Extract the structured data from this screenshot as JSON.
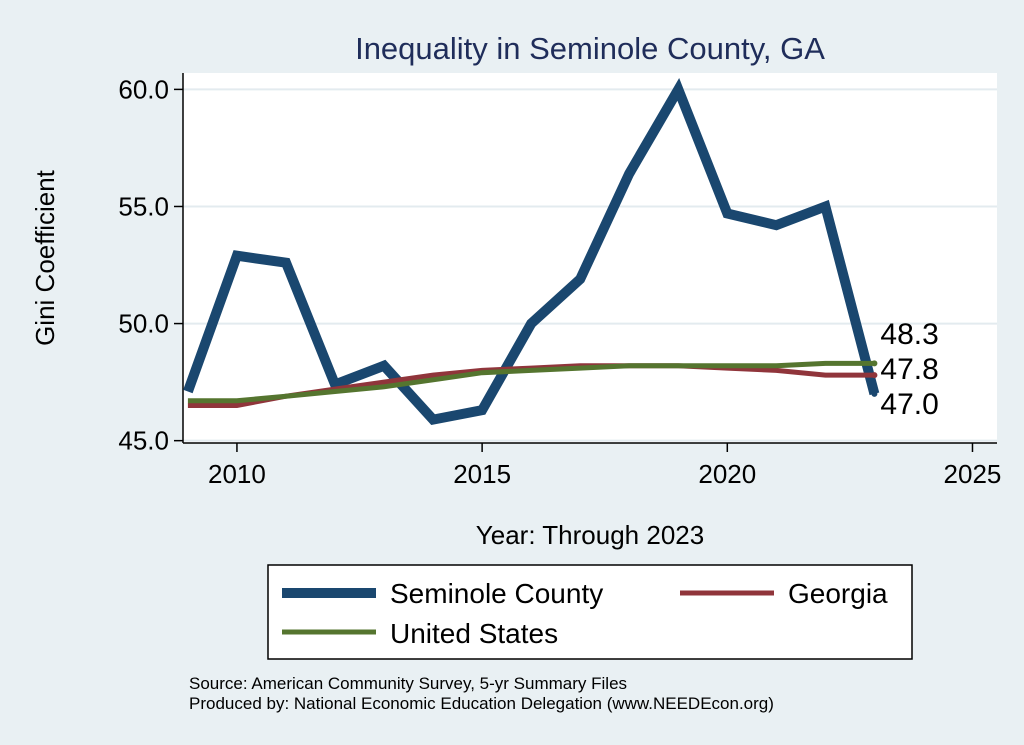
{
  "chart_data": {
    "type": "line",
    "title": "Inequality in Seminole County, GA",
    "xlabel": "Year: Through 2023",
    "ylabel": "Gini Coefficient",
    "xlim": [
      2008.9,
      2025.5
    ],
    "ylim": [
      44.9,
      60.7
    ],
    "xticks": [
      2010,
      2015,
      2020,
      2025
    ],
    "yticks": [
      45.0,
      50.0,
      55.0,
      60.0
    ],
    "ytick_labels": [
      "45.0",
      "50.0",
      "55.0",
      "60.0"
    ],
    "grid": true,
    "x": [
      2009,
      2010,
      2011,
      2012,
      2013,
      2014,
      2015,
      2016,
      2017,
      2018,
      2019,
      2020,
      2021,
      2022,
      2023
    ],
    "series": [
      {
        "name": "Seminole County",
        "color": "#1a476f",
        "values": [
          47.1,
          52.9,
          52.6,
          47.4,
          48.2,
          45.9,
          46.3,
          50.0,
          51.9,
          56.4,
          60.0,
          54.7,
          54.2,
          55.0,
          47.0
        ],
        "end_label": "47.0"
      },
      {
        "name": "Georgia",
        "color": "#90353b",
        "values": [
          46.5,
          46.5,
          46.9,
          47.2,
          47.5,
          47.8,
          48.0,
          48.1,
          48.2,
          48.2,
          48.2,
          48.1,
          48.0,
          47.8,
          47.8
        ],
        "end_label": "47.8"
      },
      {
        "name": "United States",
        "color": "#55752f",
        "values": [
          46.7,
          46.7,
          46.9,
          47.1,
          47.3,
          47.6,
          47.9,
          48.0,
          48.1,
          48.2,
          48.2,
          48.2,
          48.2,
          48.3,
          48.3
        ],
        "end_label": "48.3"
      }
    ],
    "legend_position": "bottom",
    "source_lines": [
      "Source: American Community Survey, 5-yr Summary Files",
      "Produced by: National Economic Education Delegation (www.NEEDEcon.org)"
    ]
  }
}
